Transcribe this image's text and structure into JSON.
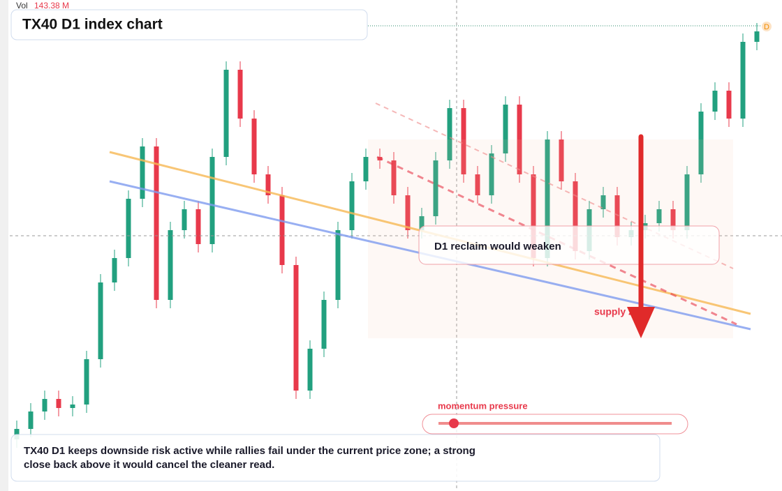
{
  "chart_data": {
    "type": "candlestick",
    "title": "TX40 D1 index chart",
    "volume_label": "Vol",
    "volume_value": "143.38 M",
    "open": [
      1870,
      1885,
      1910,
      1928,
      1915,
      1920,
      1985,
      2095,
      2130,
      2215,
      2290,
      2070,
      2170,
      2200,
      2150,
      2275,
      2400,
      2330,
      2250,
      2220,
      2120,
      1940,
      2000,
      2070,
      2170,
      2240,
      2275,
      2270,
      2220,
      2170,
      2190,
      2270,
      2345,
      2250,
      2220,
      2280,
      2350,
      2250,
      2130,
      2300,
      2240,
      2140,
      2200,
      2220,
      2160,
      2170,
      2180,
      2200,
      2170,
      2250,
      2340,
      2370,
      2330,
      2440
    ],
    "high": [
      1897,
      1922,
      1940,
      1940,
      1932,
      1997,
      2107,
      2142,
      2227,
      2302,
      2302,
      2182,
      2212,
      2212,
      2287,
      2412,
      2412,
      2342,
      2262,
      2232,
      2132,
      2012,
      2082,
      2182,
      2252,
      2287,
      2287,
      2282,
      2232,
      2202,
      2282,
      2357,
      2357,
      2262,
      2292,
      2362,
      2362,
      2262,
      2312,
      2312,
      2252,
      2212,
      2232,
      2232,
      2182,
      2192,
      2212,
      2212,
      2262,
      2352,
      2382,
      2382,
      2452,
      2467
    ],
    "low": [
      1858,
      1873,
      1898,
      1903,
      1903,
      1908,
      1973,
      2083,
      2118,
      2203,
      2058,
      2058,
      2158,
      2138,
      2138,
      2263,
      2318,
      2238,
      2208,
      2108,
      1928,
      1928,
      1988,
      2058,
      2158,
      2228,
      2258,
      2208,
      2158,
      2158,
      2178,
      2258,
      2238,
      2208,
      2208,
      2268,
      2238,
      2118,
      2118,
      2228,
      2128,
      2128,
      2188,
      2148,
      2148,
      2158,
      2168,
      2158,
      2158,
      2238,
      2328,
      2318,
      2318,
      2428
    ],
    "close": [
      1885,
      1910,
      1928,
      1915,
      1920,
      1985,
      2095,
      2130,
      2215,
      2290,
      2070,
      2170,
      2200,
      2150,
      2275,
      2400,
      2330,
      2250,
      2220,
      2120,
      1940,
      2000,
      2070,
      2170,
      2240,
      2275,
      2270,
      2220,
      2170,
      2190,
      2270,
      2345,
      2250,
      2220,
      2280,
      2350,
      2250,
      2130,
      2300,
      2240,
      2140,
      2200,
      2220,
      2160,
      2170,
      2180,
      2200,
      2170,
      2250,
      2340,
      2370,
      2330,
      2440,
      2455
    ],
    "ylim": [
      1796,
      2500
    ],
    "up_color": "#22a07f",
    "down_color": "#e8394b",
    "callout": "D1 reclaim would weaken",
    "zone_label": "supply zone",
    "indicator_label": "momentum pressure",
    "summary": "TX40 D1 keeps downside risk active while rallies fail under the current price zone; a strong close back above it would cancel the cleaner read."
  }
}
